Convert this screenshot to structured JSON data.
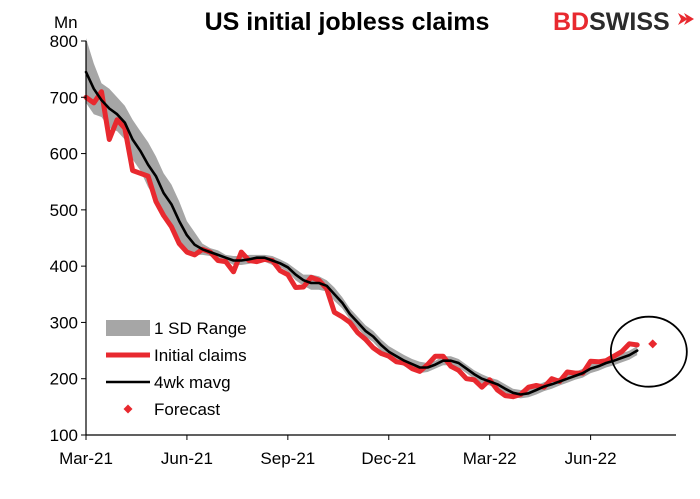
{
  "chart_data": {
    "type": "line",
    "title": "US initial jobless claims",
    "ylabel": "Mn",
    "ylim": [
      100,
      800
    ],
    "yticks": [
      100,
      200,
      300,
      400,
      500,
      600,
      700,
      800
    ],
    "xlim": [
      0,
      76
    ],
    "xticks": [
      {
        "label": "Mar-21",
        "x": 0
      },
      {
        "label": "Jun-21",
        "x": 13
      },
      {
        "label": "Sep-21",
        "x": 26
      },
      {
        "label": "Dec-21",
        "x": 39
      },
      {
        "label": "Mar-22",
        "x": 52
      },
      {
        "label": "Jun-22",
        "x": 65
      }
    ],
    "series": [
      {
        "name": "Initial claims",
        "color": "#e8292f",
        "values": [
          700,
          690,
          710,
          625,
          660,
          645,
          570,
          565,
          560,
          515,
          490,
          470,
          440,
          425,
          420,
          430,
          425,
          410,
          408,
          390,
          425,
          410,
          408,
          412,
          410,
          392,
          385,
          362,
          363,
          380,
          375,
          360,
          318,
          310,
          300,
          282,
          270,
          255,
          245,
          240,
          230,
          228,
          218,
          213,
          225,
          240,
          240,
          222,
          215,
          200,
          198,
          185,
          198,
          180,
          170,
          168,
          172,
          185,
          188,
          185,
          200,
          195,
          212,
          210,
          210,
          231,
          230,
          232,
          240,
          248,
          262,
          260
        ],
        "x_start": 0
      },
      {
        "name": "4wk mavg",
        "color": "#000000",
        "values": [
          745,
          715,
          695,
          680,
          670,
          655,
          625,
          605,
          580,
          560,
          530,
          510,
          480,
          455,
          438,
          430,
          425,
          420,
          415,
          410,
          410,
          412,
          415,
          415,
          410,
          405,
          398,
          385,
          375,
          370,
          370,
          365,
          350,
          335,
          315,
          300,
          285,
          275,
          260,
          248,
          240,
          232,
          226,
          220,
          220,
          225,
          232,
          232,
          228,
          218,
          208,
          200,
          195,
          190,
          182,
          175,
          172,
          174,
          180,
          186,
          190,
          195,
          200,
          205,
          210,
          218,
          222,
          228,
          232,
          237,
          242,
          250
        ],
        "x_start": 0
      },
      {
        "name": "Forecast",
        "color": "#e8292f",
        "values": [
          262
        ],
        "x_start": 73
      }
    ],
    "band": {
      "name": "1 SD Range",
      "color": "#a6a6a6",
      "x_start": 0,
      "upper": [
        805,
        760,
        725,
        715,
        700,
        685,
        660,
        640,
        620,
        595,
        565,
        545,
        515,
        480,
        460,
        440,
        432,
        428,
        420,
        418,
        418,
        420,
        420,
        420,
        418,
        412,
        405,
        395,
        385,
        385,
        382,
        375,
        362,
        345,
        325,
        310,
        295,
        285,
        270,
        258,
        250,
        242,
        235,
        230,
        228,
        232,
        240,
        240,
        235,
        225,
        215,
        208,
        202,
        198,
        190,
        182,
        180,
        182,
        188,
        194,
        198,
        202,
        207,
        212,
        218,
        226,
        230,
        236,
        240,
        245,
        250,
        258
      ],
      "lower": [
        690,
        670,
        665,
        645,
        640,
        625,
        590,
        570,
        540,
        520,
        495,
        475,
        445,
        430,
        420,
        420,
        418,
        412,
        410,
        402,
        402,
        404,
        408,
        408,
        402,
        398,
        390,
        375,
        365,
        358,
        358,
        355,
        338,
        325,
        305,
        290,
        275,
        265,
        250,
        238,
        230,
        222,
        216,
        210,
        212,
        218,
        224,
        224,
        220,
        210,
        200,
        192,
        188,
        182,
        175,
        168,
        165,
        167,
        172,
        178,
        182,
        188,
        193,
        198,
        202,
        210,
        214,
        220,
        224,
        229,
        234,
        242
      ]
    },
    "legend": {
      "position": "bottom-left",
      "entries": [
        "1 SD Range",
        "Initial claims",
        "4wk mavg",
        "Forecast"
      ]
    },
    "annotation": {
      "type": "circle",
      "target": "Forecast"
    },
    "grid": false
  },
  "brand": {
    "text_bd": "BD",
    "text_swiss": "SWISS",
    "color_bd": "#e8292f",
    "color_swiss": "#2b2b2b"
  }
}
